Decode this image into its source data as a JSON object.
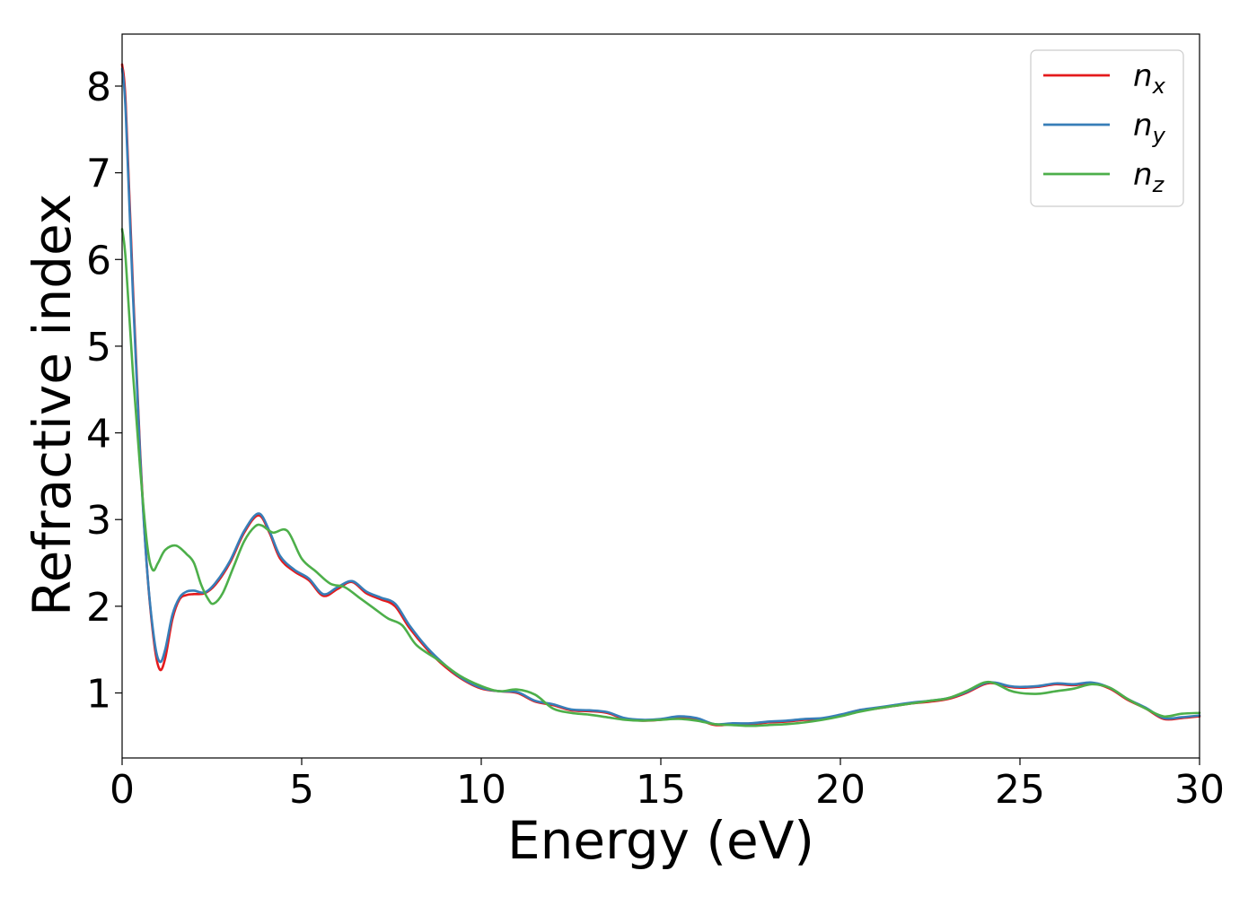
{
  "chart_data": {
    "type": "line",
    "xlabel": "Energy (eV)",
    "ylabel": "Refractive index",
    "xlim": [
      0,
      30
    ],
    "ylim": [
      0.25,
      8.6
    ],
    "xticks": [
      0,
      5,
      10,
      15,
      20,
      25,
      30
    ],
    "yticks": [
      1,
      2,
      3,
      4,
      5,
      6,
      7,
      8
    ],
    "grid": false,
    "legend_position": "top-right",
    "series": [
      {
        "name": "n",
        "subscript": "x",
        "color": "#e41a1c",
        "x": [
          0,
          0.1,
          0.3,
          0.5,
          0.7,
          0.9,
          1.05,
          1.2,
          1.4,
          1.6,
          1.8,
          2.0,
          2.3,
          2.6,
          3.0,
          3.4,
          3.8,
          4.1,
          4.4,
          4.8,
          5.2,
          5.6,
          6.0,
          6.4,
          6.8,
          7.2,
          7.6,
          8.0,
          8.5,
          9.0,
          9.5,
          10.0,
          10.5,
          11.0,
          11.5,
          12.0,
          12.5,
          13.0,
          13.5,
          14.0,
          14.5,
          15.0,
          15.5,
          16.0,
          16.5,
          17.0,
          17.5,
          18.0,
          18.5,
          19.0,
          19.5,
          20.0,
          20.5,
          21.0,
          21.5,
          22.0,
          22.5,
          23.0,
          23.5,
          24.0,
          24.3,
          24.7,
          25.0,
          25.5,
          26.0,
          26.5,
          27.0,
          27.5,
          28.0,
          28.5,
          29.0,
          29.5,
          30.0
        ],
        "values": [
          8.25,
          7.8,
          5.7,
          3.8,
          2.4,
          1.55,
          1.27,
          1.4,
          1.85,
          2.08,
          2.13,
          2.14,
          2.15,
          2.25,
          2.5,
          2.85,
          3.05,
          2.85,
          2.55,
          2.4,
          2.3,
          2.12,
          2.2,
          2.28,
          2.15,
          2.08,
          2.0,
          1.75,
          1.5,
          1.3,
          1.15,
          1.05,
          1.02,
          1.0,
          0.9,
          0.86,
          0.8,
          0.79,
          0.77,
          0.7,
          0.68,
          0.69,
          0.72,
          0.7,
          0.63,
          0.64,
          0.64,
          0.66,
          0.67,
          0.69,
          0.7,
          0.74,
          0.8,
          0.82,
          0.85,
          0.88,
          0.9,
          0.93,
          1.0,
          1.1,
          1.11,
          1.07,
          1.06,
          1.07,
          1.1,
          1.09,
          1.11,
          1.05,
          0.92,
          0.82,
          0.7,
          0.71,
          0.73
        ]
      },
      {
        "name": "n",
        "subscript": "y",
        "color": "#377eb8",
        "x": [
          0,
          0.1,
          0.3,
          0.5,
          0.7,
          0.9,
          1.05,
          1.2,
          1.4,
          1.6,
          1.8,
          2.0,
          2.3,
          2.6,
          3.0,
          3.4,
          3.8,
          4.1,
          4.4,
          4.8,
          5.2,
          5.6,
          6.0,
          6.4,
          6.8,
          7.2,
          7.6,
          8.0,
          8.5,
          9.0,
          9.5,
          10.0,
          10.5,
          11.0,
          11.5,
          12.0,
          12.5,
          13.0,
          13.5,
          14.0,
          14.5,
          15.0,
          15.5,
          16.0,
          16.5,
          17.0,
          17.5,
          18.0,
          18.5,
          19.0,
          19.5,
          20.0,
          20.5,
          21.0,
          21.5,
          22.0,
          22.5,
          23.0,
          23.5,
          24.0,
          24.3,
          24.7,
          25.0,
          25.5,
          26.0,
          26.5,
          27.0,
          27.5,
          28.0,
          28.5,
          29.0,
          29.5,
          30.0
        ],
        "values": [
          8.2,
          7.7,
          5.6,
          3.75,
          2.4,
          1.6,
          1.36,
          1.5,
          1.9,
          2.1,
          2.17,
          2.18,
          2.16,
          2.27,
          2.52,
          2.87,
          3.07,
          2.87,
          2.58,
          2.42,
          2.32,
          2.14,
          2.22,
          2.29,
          2.17,
          2.1,
          2.03,
          1.78,
          1.52,
          1.32,
          1.16,
          1.06,
          1.02,
          1.01,
          0.91,
          0.87,
          0.81,
          0.8,
          0.78,
          0.71,
          0.69,
          0.7,
          0.73,
          0.71,
          0.64,
          0.65,
          0.65,
          0.67,
          0.68,
          0.7,
          0.71,
          0.75,
          0.8,
          0.83,
          0.86,
          0.89,
          0.91,
          0.94,
          1.01,
          1.11,
          1.12,
          1.08,
          1.07,
          1.08,
          1.11,
          1.1,
          1.12,
          1.06,
          0.93,
          0.83,
          0.71,
          0.72,
          0.74
        ]
      },
      {
        "name": "n",
        "subscript": "z",
        "color": "#4daf4a",
        "x": [
          0,
          0.1,
          0.3,
          0.5,
          0.7,
          0.85,
          1.0,
          1.2,
          1.5,
          1.8,
          2.0,
          2.2,
          2.4,
          2.55,
          2.8,
          3.1,
          3.4,
          3.7,
          3.9,
          4.2,
          4.6,
          5.0,
          5.4,
          5.8,
          6.2,
          6.6,
          7.0,
          7.4,
          7.8,
          8.2,
          8.8,
          9.4,
          10.0,
          10.5,
          11.0,
          11.5,
          12.0,
          12.5,
          13.0,
          13.5,
          14.0,
          14.5,
          15.0,
          15.5,
          16.0,
          16.5,
          17.0,
          17.5,
          18.0,
          18.5,
          19.0,
          19.5,
          20.0,
          20.5,
          21.0,
          21.5,
          22.0,
          22.5,
          23.0,
          23.5,
          24.0,
          24.3,
          24.7,
          25.0,
          25.5,
          26.0,
          26.5,
          27.0,
          27.5,
          28.0,
          28.5,
          29.0,
          29.5,
          30.0
        ],
        "values": [
          6.35,
          6.0,
          4.7,
          3.6,
          2.7,
          2.42,
          2.5,
          2.65,
          2.7,
          2.6,
          2.5,
          2.25,
          2.08,
          2.03,
          2.15,
          2.45,
          2.75,
          2.92,
          2.93,
          2.85,
          2.87,
          2.55,
          2.4,
          2.26,
          2.22,
          2.1,
          1.98,
          1.86,
          1.78,
          1.55,
          1.38,
          1.2,
          1.08,
          1.02,
          1.04,
          0.98,
          0.82,
          0.77,
          0.75,
          0.72,
          0.69,
          0.68,
          0.69,
          0.7,
          0.68,
          0.64,
          0.63,
          0.62,
          0.63,
          0.64,
          0.66,
          0.69,
          0.73,
          0.78,
          0.82,
          0.85,
          0.88,
          0.91,
          0.94,
          1.02,
          1.12,
          1.11,
          1.03,
          1.0,
          0.99,
          1.02,
          1.05,
          1.1,
          1.06,
          0.93,
          0.82,
          0.73,
          0.76,
          0.77
        ]
      }
    ]
  }
}
